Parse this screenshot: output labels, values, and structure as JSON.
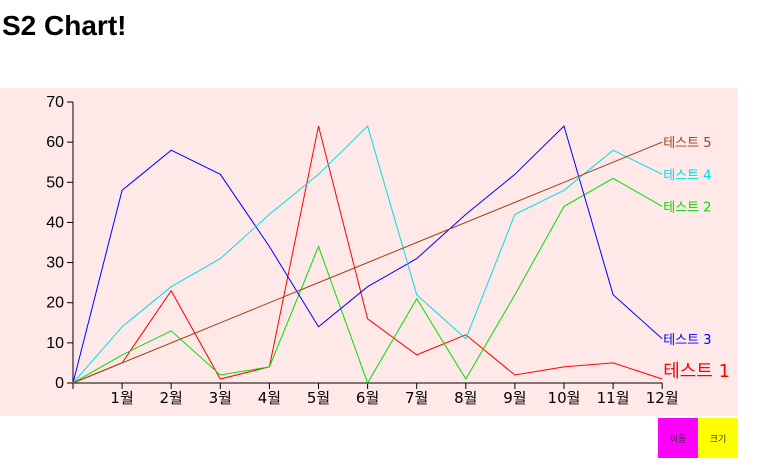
{
  "page": {
    "title": "S2 Chart!"
  },
  "controls": {
    "move_label": "이동",
    "resize_label": "크기",
    "move_color": "#ff00ff",
    "resize_color": "#ffff00"
  },
  "chart_data": {
    "type": "line",
    "title": "",
    "xlabel": "",
    "ylabel": "",
    "background": "#ffe8e8",
    "categories": [
      "",
      "1월",
      "2월",
      "3월",
      "4월",
      "5월",
      "6월",
      "7월",
      "8월",
      "9월",
      "10월",
      "11월",
      "12월"
    ],
    "ylim": [
      0,
      70
    ],
    "yticks": [
      0,
      10,
      20,
      30,
      40,
      50,
      60,
      70
    ],
    "grid": false,
    "legend": "inline-end",
    "series": [
      {
        "name": "테스트 1",
        "color": "#ff0000",
        "values": [
          0,
          5,
          23,
          1,
          4,
          64,
          16,
          7,
          12,
          2,
          4,
          5,
          1
        ]
      },
      {
        "name": "테스트 2",
        "color": "#00e000",
        "values": [
          0,
          7,
          13,
          2,
          4,
          34,
          0,
          21,
          1,
          22,
          44,
          51,
          44
        ]
      },
      {
        "name": "테스트 3",
        "color": "#0000ff",
        "values": [
          0,
          48,
          58,
          52,
          34,
          14,
          24,
          31,
          42,
          52,
          64,
          22,
          11
        ]
      },
      {
        "name": "테스트 4",
        "color": "#00e0e0",
        "values": [
          0,
          14,
          24,
          31,
          42,
          52,
          64,
          22,
          11,
          42,
          48,
          58,
          52
        ]
      },
      {
        "name": "테스트 5",
        "color": "#a0421a",
        "values": [
          0,
          5,
          10,
          15,
          20,
          25,
          30,
          35,
          40,
          45,
          50,
          55,
          60
        ]
      }
    ]
  }
}
